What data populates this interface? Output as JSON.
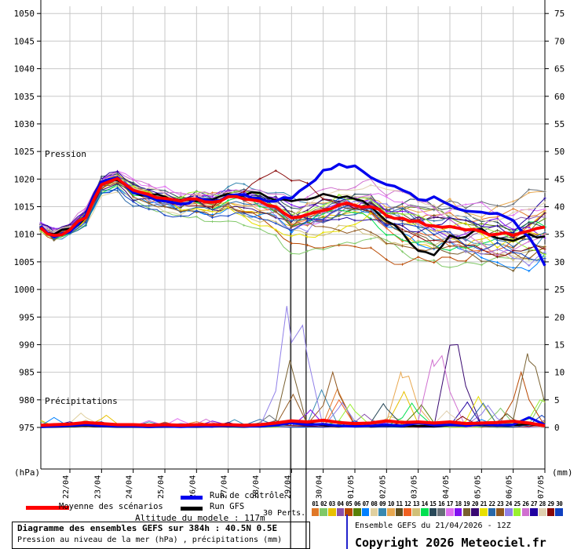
{
  "legend": {
    "mean": "Moyenne des scénarios",
    "control": "Run de contrôle",
    "gfs": "Run GFS",
    "perts": "30 Perts.",
    "altitude": "Altitude du modele : 117m"
  },
  "footer": {
    "run": "Ensemble GEFS du 21/04/2026 - 12Z",
    "copyright": "Copyright 2026 Meteociel.fr"
  },
  "chart_data": {
    "type": "line",
    "title": "Diagramme des ensembles GEFS sur 384h : 40.5N 0.5E",
    "subtitle": "Pression au niveau de la mer (hPa) , précipitations (mm)",
    "pressure_axis": {
      "label": "Pression",
      "unit": "(hPa)",
      "min": 975,
      "max": 1050,
      "step": 5,
      "ticks": [
        975,
        980,
        985,
        990,
        995,
        1000,
        1005,
        1010,
        1015,
        1020,
        1025,
        1030,
        1035,
        1040,
        1045,
        1050
      ]
    },
    "precip_axis": {
      "label": "Précipitations",
      "unit": "(mm)",
      "min": 0,
      "max": 75,
      "step": 5,
      "ticks": [
        0,
        5,
        10,
        15,
        20,
        25,
        30,
        35,
        40,
        45,
        50,
        55,
        60,
        65,
        70,
        75
      ]
    },
    "dates": [
      "22/04",
      "23/04",
      "24/04",
      "25/04",
      "26/04",
      "27/04",
      "28/04",
      "29/04",
      "30/04",
      "01/05",
      "02/05",
      "03/05",
      "04/05",
      "05/05",
      "06/05",
      "07/05"
    ],
    "grid": true,
    "legend_position": "bottom",
    "marker_lines_d": [
      6.97,
      7.46
    ],
    "d_grid": [
      -0.92,
      -0.5,
      0,
      0.5,
      1,
      1.5,
      2,
      2.5,
      3,
      3.5,
      4,
      4.5,
      5,
      5.5,
      6,
      6.5,
      7,
      7.5,
      8,
      8.5,
      9,
      9.5,
      10,
      10.5,
      11,
      11.5,
      12,
      12.5,
      13,
      13.5,
      14,
      14.5,
      15
    ],
    "pressure_series": [
      {
        "id": "mean",
        "name": "Moyenne des scénarios",
        "color": "#FF0000",
        "width": 3.8,
        "values": [
          1011.2,
          1009.8,
          1010.8,
          1013.0,
          1019.0,
          1020.1,
          1018.0,
          1017.2,
          1016.5,
          1016.0,
          1016.4,
          1015.8,
          1016.8,
          1016.4,
          1016.0,
          1015.0,
          1013.0,
          1013.6,
          1014.3,
          1015.3,
          1015.2,
          1015.0,
          1013.4,
          1012.9,
          1012.4,
          1011.5,
          1011.4,
          1010.8,
          1010.5,
          1010.0,
          1009.8,
          1010.6,
          1011.3
        ]
      },
      {
        "id": "control",
        "name": "Run de contrôle",
        "color": "#0000EE",
        "width": 3.4,
        "values": [
          1011.5,
          1009.5,
          1010.5,
          1013.5,
          1019.5,
          1020.3,
          1017.5,
          1016.8,
          1016.0,
          1015.5,
          1016.5,
          1016.0,
          1017.0,
          1017.2,
          1016.5,
          1016.0,
          1016.5,
          1018.8,
          1021.6,
          1022.7,
          1022.4,
          1020.3,
          1019.0,
          1018.0,
          1016.3,
          1016.8,
          1015.3,
          1014.2,
          1014.0,
          1013.8,
          1012.5,
          1009.5,
          1004.3
        ]
      },
      {
        "id": "gfs",
        "name": "Run GFS",
        "color": "#000000",
        "width": 2.6,
        "values": [
          1011.0,
          1010.0,
          1011.0,
          1013.0,
          1019.3,
          1019.8,
          1017.5,
          1017.0,
          1016.8,
          1016.2,
          1016.0,
          1016.3,
          1017.3,
          1017.0,
          1017.5,
          1016.2,
          1016.0,
          1016.3,
          1017.3,
          1016.6,
          1016.4,
          1015.0,
          1012.4,
          1010.3,
          1007.0,
          1006.2,
          1009.8,
          1009.5,
          1011.0,
          1009.3,
          1008.8,
          1010.0,
          1009.6
        ]
      }
    ],
    "precip_series": [
      {
        "id": "mean",
        "name": "Moyenne des scénarios",
        "color": "#FF0000",
        "width": 4,
        "values": [
          0.4,
          0.5,
          0.6,
          0.9,
          0.7,
          0.5,
          0.5,
          0.4,
          0.5,
          0.4,
          0.5,
          0.5,
          0.5,
          0.4,
          0.5,
          0.8,
          1.2,
          1.0,
          1.3,
          0.9,
          0.7,
          0.8,
          1.2,
          0.9,
          1.0,
          0.8,
          1.0,
          0.7,
          0.8,
          0.9,
          1.1,
          0.8,
          0.3
        ]
      },
      {
        "id": "control",
        "name": "Run de contrôle",
        "color": "#0000EE",
        "width": 3,
        "values": [
          0.1,
          0.2,
          0.3,
          0.5,
          0.3,
          0.2,
          0.2,
          0.1,
          0.2,
          0.1,
          0.2,
          0.2,
          0.3,
          0.2,
          0.2,
          0.4,
          0.8,
          0.5,
          0.6,
          0.3,
          0.2,
          0.3,
          0.5,
          0.3,
          0.8,
          0.4,
          0.5,
          0.3,
          0.6,
          0.4,
          0.5,
          1.8,
          0.5
        ]
      },
      {
        "id": "gfs",
        "name": "Run GFS",
        "color": "#000000",
        "width": 2.4,
        "values": [
          0.05,
          0.1,
          0.2,
          0.3,
          0.2,
          0.1,
          0.1,
          0.05,
          0.1,
          0.1,
          0.1,
          0.2,
          0.2,
          0.1,
          0.3,
          0.5,
          1.0,
          0.8,
          0.4,
          0.2,
          0.3,
          0.2,
          0.4,
          0.2,
          0.3,
          0.2,
          0.4,
          0.3,
          0.5,
          0.3,
          0.4,
          0.6,
          0.2
        ]
      }
    ],
    "members": [
      {
        "num": "01",
        "color": "#E07828"
      },
      {
        "num": "02",
        "color": "#80C868"
      },
      {
        "num": "03",
        "color": "#E8C000"
      },
      {
        "num": "04",
        "color": "#8850A8"
      },
      {
        "num": "05",
        "color": "#B84800"
      },
      {
        "num": "06",
        "color": "#588008"
      },
      {
        "num": "07",
        "color": "#0080FF"
      },
      {
        "num": "08",
        "color": "#E0D0A0"
      },
      {
        "num": "09",
        "color": "#3888B0"
      },
      {
        "num": "10",
        "color": "#E8A850"
      },
      {
        "num": "11",
        "color": "#605020"
      },
      {
        "num": "12",
        "color": "#F06020"
      },
      {
        "num": "13",
        "color": "#D0C078"
      },
      {
        "num": "14",
        "color": "#00E050"
      },
      {
        "num": "15",
        "color": "#284858"
      },
      {
        "num": "16",
        "color": "#687078"
      },
      {
        "num": "17",
        "color": "#E070F0"
      },
      {
        "num": "18",
        "color": "#8010F0"
      },
      {
        "num": "19",
        "color": "#786030"
      },
      {
        "num": "20",
        "color": "#380870"
      },
      {
        "num": "21",
        "color": "#E8E000"
      },
      {
        "num": "22",
        "color": "#2868A8"
      },
      {
        "num": "23",
        "color": "#905820"
      },
      {
        "num": "24",
        "color": "#9080E8"
      },
      {
        "num": "25",
        "color": "#98F030"
      },
      {
        "num": "26",
        "color": "#D070D0"
      },
      {
        "num": "27",
        "color": "#2000A0"
      },
      {
        "num": "28",
        "color": "#E0D0B0"
      },
      {
        "num": "29",
        "color": "#880808"
      },
      {
        "num": "30",
        "color": "#1040C0"
      }
    ],
    "precip_events": [
      {
        "member": 24,
        "d": 6.85,
        "mm": 22
      },
      {
        "member": 24,
        "d": 7.35,
        "mm": 18.5
      },
      {
        "member": 19,
        "d": 6.95,
        "mm": 12.2
      },
      {
        "member": 23,
        "d": 7.05,
        "mm": 6
      },
      {
        "member": 9,
        "d": 7.95,
        "mm": 6.8
      },
      {
        "member": 23,
        "d": 8.3,
        "mm": 10
      },
      {
        "member": 1,
        "d": 8.45,
        "mm": 7
      },
      {
        "member": 12,
        "d": 8.5,
        "mm": 5
      },
      {
        "member": 24,
        "d": 8.6,
        "mm": 4.5
      },
      {
        "member": 25,
        "d": 8.85,
        "mm": 4.2
      },
      {
        "member": 15,
        "d": 9.9,
        "mm": 4.3
      },
      {
        "member": 10,
        "d": 10.45,
        "mm": 10
      },
      {
        "member": 3,
        "d": 10.55,
        "mm": 6.5
      },
      {
        "member": 10,
        "d": 10.7,
        "mm": 9.3
      },
      {
        "member": 14,
        "d": 10.8,
        "mm": 4.4
      },
      {
        "member": 6,
        "d": 11.1,
        "mm": 4.1
      },
      {
        "member": 26,
        "d": 11.45,
        "mm": 12.3
      },
      {
        "member": 26,
        "d": 11.75,
        "mm": 13
      },
      {
        "member": 20,
        "d": 12.0,
        "mm": 14.9
      },
      {
        "member": 20,
        "d": 12.25,
        "mm": 15
      },
      {
        "member": 27,
        "d": 12.55,
        "mm": 4.6
      },
      {
        "member": 21,
        "d": 12.9,
        "mm": 5.6
      },
      {
        "member": 22,
        "d": 13.05,
        "mm": 4.4
      },
      {
        "member": 24,
        "d": 13.2,
        "mm": 4
      },
      {
        "member": 2,
        "d": 13.6,
        "mm": 3.5
      },
      {
        "member": 5,
        "d": 14.25,
        "mm": 10
      },
      {
        "member": 19,
        "d": 14.45,
        "mm": 13.4
      },
      {
        "member": 19,
        "d": 14.7,
        "mm": 11
      },
      {
        "member": 2,
        "d": 14.95,
        "mm": 5.2
      },
      {
        "member": 25,
        "d": 14.85,
        "mm": 5
      },
      {
        "member": 25,
        "d": 15,
        "mm": 4.6
      },
      {
        "member": 8,
        "d": 0.35,
        "mm": 2.6
      },
      {
        "member": 3,
        "d": 1.15,
        "mm": 2.2
      },
      {
        "member": 7,
        "d": -0.5,
        "mm": 1.8
      },
      {
        "member": 17,
        "d": 3.4,
        "mm": 1.6
      },
      {
        "member": 26,
        "d": 4.3,
        "mm": 1.5
      },
      {
        "member": 9,
        "d": 5.2,
        "mm": 1.4
      },
      {
        "member": 16,
        "d": 6.3,
        "mm": 2.2
      },
      {
        "member": 18,
        "d": 7.6,
        "mm": 3.2
      },
      {
        "member": 4,
        "d": 9.3,
        "mm": 2.4
      },
      {
        "member": 13,
        "d": 10.1,
        "mm": 2
      },
      {
        "member": 28,
        "d": 11.9,
        "mm": 3
      },
      {
        "member": 11,
        "d": 13.8,
        "mm": 2.5
      },
      {
        "member": 30,
        "d": 14.9,
        "mm": 2.2
      },
      {
        "member": 29,
        "d": 12.4,
        "mm": 2
      }
    ]
  }
}
